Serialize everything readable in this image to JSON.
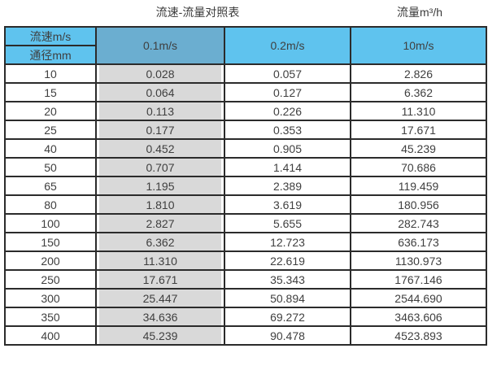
{
  "header": {
    "title": "流速-流量对照表",
    "unit_label": "流量m³/h"
  },
  "table": {
    "corner_top": "流速m/s",
    "corner_bottom": "通径mm",
    "velocity_columns": [
      "0.1m/s",
      "0.2m/s",
      "10m/s"
    ],
    "rows": [
      [
        "10",
        "0.028",
        "0.057",
        "2.826"
      ],
      [
        "15",
        "0.064",
        "0.127",
        "6.362"
      ],
      [
        "20",
        "0.113",
        "0.226",
        "11.310"
      ],
      [
        "25",
        "0.177",
        "0.353",
        "17.671"
      ],
      [
        "40",
        "0.452",
        "0.905",
        "45.239"
      ],
      [
        "50",
        "0.707",
        "1.414",
        "70.686"
      ],
      [
        "65",
        "1.195",
        "2.389",
        "119.459"
      ],
      [
        "80",
        "1.810",
        "3.619",
        "180.956"
      ],
      [
        "100",
        "2.827",
        "5.655",
        "282.743"
      ],
      [
        "150",
        "6.362",
        "12.723",
        "636.173"
      ],
      [
        "200",
        "11.310",
        "22.619",
        "1130.973"
      ],
      [
        "250",
        "17.671",
        "35.343",
        "1767.146"
      ],
      [
        "300",
        "25.447",
        "50.894",
        "2544.690"
      ],
      [
        "350",
        "34.636",
        "69.272",
        "3463.606"
      ],
      [
        "400",
        "45.239",
        "90.478",
        "4523.893"
      ]
    ]
  },
  "colors": {
    "header_blue": "#5FC3EE",
    "highlight_blue": "#6BAED0",
    "cell_gray": "#D9D9D9",
    "border_dark": "#2B2B2B",
    "text": "#3F3F3F"
  },
  "chart_data": {
    "type": "table",
    "title": "流速-流量对照表",
    "unit": "流量m³/h",
    "row_header": "通径mm",
    "column_header": "流速m/s",
    "columns": [
      "0.1m/s",
      "0.2m/s",
      "10m/s"
    ],
    "diameters_mm": [
      10,
      15,
      20,
      25,
      40,
      50,
      65,
      80,
      100,
      150,
      200,
      250,
      300,
      350,
      400
    ],
    "series": [
      {
        "name": "0.1m/s",
        "values": [
          0.028,
          0.064,
          0.113,
          0.177,
          0.452,
          0.707,
          1.195,
          1.81,
          2.827,
          6.362,
          11.31,
          17.671,
          25.447,
          34.636,
          45.239
        ]
      },
      {
        "name": "0.2m/s",
        "values": [
          0.057,
          0.127,
          0.226,
          0.353,
          0.905,
          1.414,
          2.389,
          3.619,
          5.655,
          12.723,
          22.619,
          35.343,
          50.894,
          69.272,
          90.478
        ]
      },
      {
        "name": "10m/s",
        "values": [
          2.826,
          6.362,
          11.31,
          17.671,
          45.239,
          70.686,
          119.459,
          180.956,
          282.743,
          636.173,
          1130.973,
          1767.146,
          2544.69,
          3463.606,
          4523.893
        ]
      }
    ],
    "layout": {
      "grid": true,
      "legend": false
    }
  }
}
